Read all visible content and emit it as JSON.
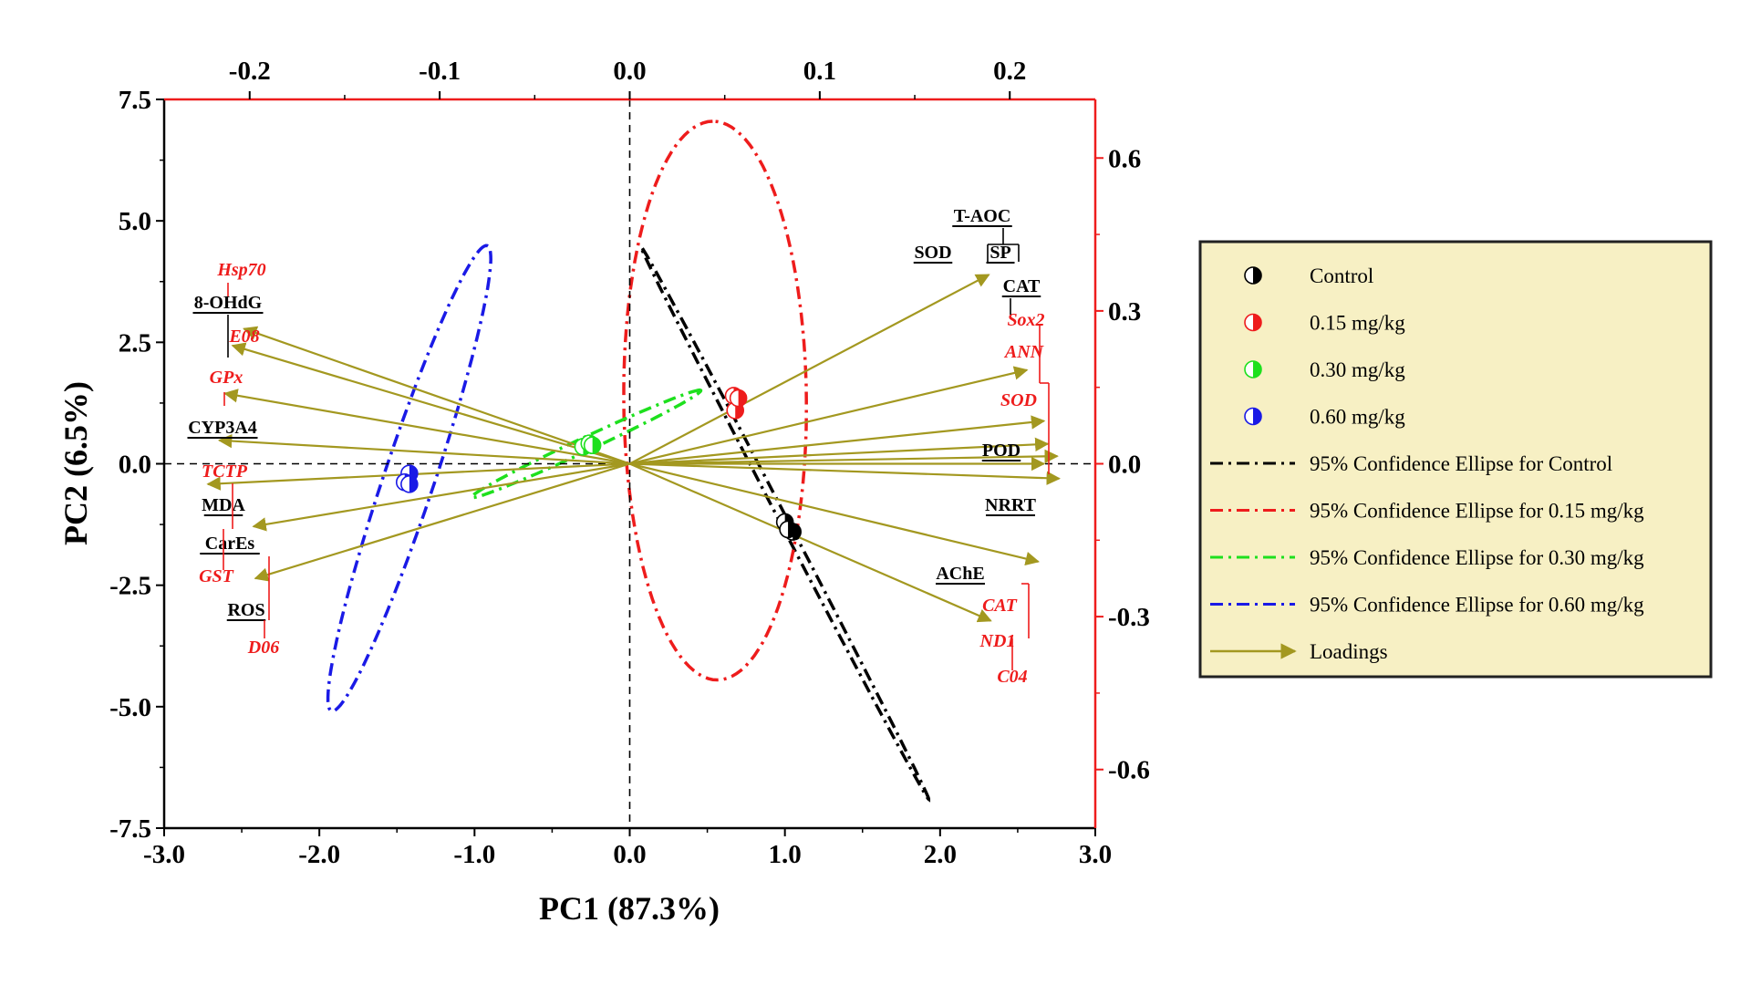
{
  "chart_data": {
    "type": "scatter",
    "subtype": "pca-biplot",
    "title": "",
    "xlabel": "PC1 (87.3%)",
    "ylabel": "PC2 (6.5%)",
    "xlim": [
      -3.0,
      3.0
    ],
    "ylim": [
      -7.5,
      7.5
    ],
    "x_ticks": [
      "-3.0",
      "-2.0",
      "-1.0",
      "0.0",
      "1.0",
      "2.0",
      "3.0"
    ],
    "y_ticks": [
      "7.5",
      "5.0",
      "2.5",
      "0.0",
      "-2.5",
      "-5.0",
      "-7.5"
    ],
    "top_axis": {
      "lim": [
        -0.245,
        0.245
      ],
      "ticks": [
        "-0.2",
        "-0.1",
        "0.0",
        "0.1",
        "0.2"
      ],
      "color": "#000000"
    },
    "right_axis": {
      "lim": [
        -0.715,
        0.715
      ],
      "ticks": [
        "0.6",
        "0.3",
        "0.0",
        "-0.3",
        "-0.6"
      ],
      "color": "#ee1c1c"
    },
    "grid": false,
    "legend_placement": "right",
    "colors": {
      "control": "#000000",
      "low": "#ee1c1c",
      "mid": "#1ee01e",
      "high": "#1a1ae6",
      "loadings": "#a39820",
      "frame_right": "#ee1c1c"
    },
    "groups": [
      {
        "name": "Control",
        "color": "#000000",
        "points": [
          [
            1.0,
            -1.2
          ],
          [
            1.05,
            -1.4
          ],
          [
            1.02,
            -1.35
          ]
        ]
      },
      {
        "name": "0.15 mg/kg",
        "color": "#ee1c1c",
        "points": [
          [
            0.67,
            1.4
          ],
          [
            0.68,
            1.1
          ],
          [
            0.7,
            1.35
          ]
        ]
      },
      {
        "name": "0.30 mg/kg",
        "color": "#1ee01e",
        "points": [
          [
            -0.3,
            0.35
          ],
          [
            -0.26,
            0.42
          ],
          [
            -0.24,
            0.38
          ]
        ]
      },
      {
        "name": "0.60 mg/kg",
        "color": "#1a1ae6",
        "points": [
          [
            -1.42,
            -0.2
          ],
          [
            -1.45,
            -0.38
          ],
          [
            -1.42,
            -0.42
          ]
        ]
      }
    ],
    "ellipses": [
      {
        "name": "95% Confidence Ellipse for Control",
        "color": "#000000",
        "cx": 1.0,
        "cy": -1.22,
        "rx": 6.41,
        "ry": 0.08,
        "angle_deg": -62.5
      },
      {
        "name": "95% Confidence Ellipse for 0.15 mg/kg",
        "color": "#ee1c1c",
        "cx": 0.55,
        "cy": 1.3,
        "rx": 5.75,
        "ry": 1.88,
        "angle_deg": 90.5
      },
      {
        "name": "95% Confidence Ellipse for 0.30 mg/kg",
        "color": "#1ee01e",
        "cx": -0.28,
        "cy": 0.41,
        "rx": 2.6,
        "ry": 0.14,
        "angle_deg": 25
      },
      {
        "name": "95% Confidence Ellipse for 0.60 mg/kg",
        "color": "#1a1ae6",
        "cx": -1.42,
        "cy": -0.3,
        "rx": 5.05,
        "ry": 0.52,
        "angle_deg": 71.5
      }
    ],
    "loadings": [
      {
        "label": "SOD",
        "italic": false,
        "color": "#000000",
        "x": 0.189,
        "y": 0.371
      },
      {
        "label": "T-AOC",
        "italic": false,
        "color": "#000000",
        "x": 0.189,
        "y": 0.371
      },
      {
        "label": "SP",
        "italic": false,
        "color": "#000000",
        "x": 0.189,
        "y": 0.371
      },
      {
        "label": "CAT",
        "italic": false,
        "color": "#000000",
        "x": 0.209,
        "y": 0.184
      },
      {
        "label": "Sox2",
        "italic": true,
        "color": "#ee1c1c",
        "x": 0.218,
        "y": 0.084
      },
      {
        "label": "ANN",
        "italic": true,
        "color": "#ee1c1c",
        "x": 0.22,
        "y": 0.039
      },
      {
        "label": "SOD",
        "italic": true,
        "color": "#ee1c1c",
        "x": 0.225,
        "y": 0.015
      },
      {
        "label": "POD",
        "italic": false,
        "color": "#000000",
        "x": 0.218,
        "y": 0.0
      },
      {
        "label": "NRRT",
        "italic": false,
        "color": "#000000",
        "x": 0.226,
        "y": -0.029
      },
      {
        "label": "AChE",
        "italic": false,
        "color": "#000000",
        "x": 0.215,
        "y": -0.192
      },
      {
        "label": "CAT",
        "italic": true,
        "color": "#ee1c1c",
        "x": 0.19,
        "y": -0.308
      },
      {
        "label": "ND1",
        "italic": true,
        "color": "#ee1c1c",
        "x": 0.19,
        "y": -0.308
      },
      {
        "label": "C04",
        "italic": true,
        "color": "#ee1c1c",
        "x": 0.19,
        "y": -0.308
      },
      {
        "label": "Hsp70",
        "italic": true,
        "color": "#ee1c1c",
        "x": -0.203,
        "y": 0.265
      },
      {
        "label": "8-OHdG",
        "italic": false,
        "color": "#000000",
        "x": -0.203,
        "y": 0.265
      },
      {
        "label": "E08",
        "italic": true,
        "color": "#ee1c1c",
        "x": -0.209,
        "y": 0.232
      },
      {
        "label": "GPx",
        "italic": true,
        "color": "#ee1c1c",
        "x": -0.213,
        "y": 0.138
      },
      {
        "label": "CYP3A4",
        "italic": false,
        "color": "#000000",
        "x": -0.216,
        "y": 0.046
      },
      {
        "label": "TCTP",
        "italic": true,
        "color": "#ee1c1c",
        "x": -0.222,
        "y": -0.04
      },
      {
        "label": "MDA",
        "italic": false,
        "color": "#000000",
        "x": -0.222,
        "y": -0.04
      },
      {
        "label": "CarEs",
        "italic": false,
        "color": "#000000",
        "x": -0.198,
        "y": -0.123
      },
      {
        "label": "GST",
        "italic": true,
        "color": "#ee1c1c",
        "x": -0.198,
        "y": -0.123
      },
      {
        "label": "ROS",
        "italic": false,
        "color": "#000000",
        "x": -0.197,
        "y": -0.225
      },
      {
        "label": "D06",
        "italic": true,
        "color": "#ee1c1c",
        "x": -0.197,
        "y": -0.225
      }
    ],
    "legend": [
      {
        "label": "Control",
        "kind": "marker",
        "color": "#000000"
      },
      {
        "label": "0.15 mg/kg",
        "kind": "marker",
        "color": "#ee1c1c"
      },
      {
        "label": "0.30 mg/kg",
        "kind": "marker",
        "color": "#1ee01e"
      },
      {
        "label": "0.60 mg/kg",
        "kind": "marker",
        "color": "#1a1ae6"
      },
      {
        "label": "95% Confidence Ellipse for Control",
        "kind": "dashdot",
        "color": "#000000"
      },
      {
        "label": "95% Confidence Ellipse for 0.15 mg/kg",
        "kind": "dashdot",
        "color": "#ee1c1c"
      },
      {
        "label": "95% Confidence Ellipse for 0.30 mg/kg",
        "kind": "dashdot",
        "color": "#1ee01e"
      },
      {
        "label": "95% Confidence Ellipse for 0.60 mg/kg",
        "kind": "dashdot",
        "color": "#1a1ae6"
      },
      {
        "label": "Loadings",
        "kind": "arrow",
        "color": "#a39820"
      }
    ]
  }
}
